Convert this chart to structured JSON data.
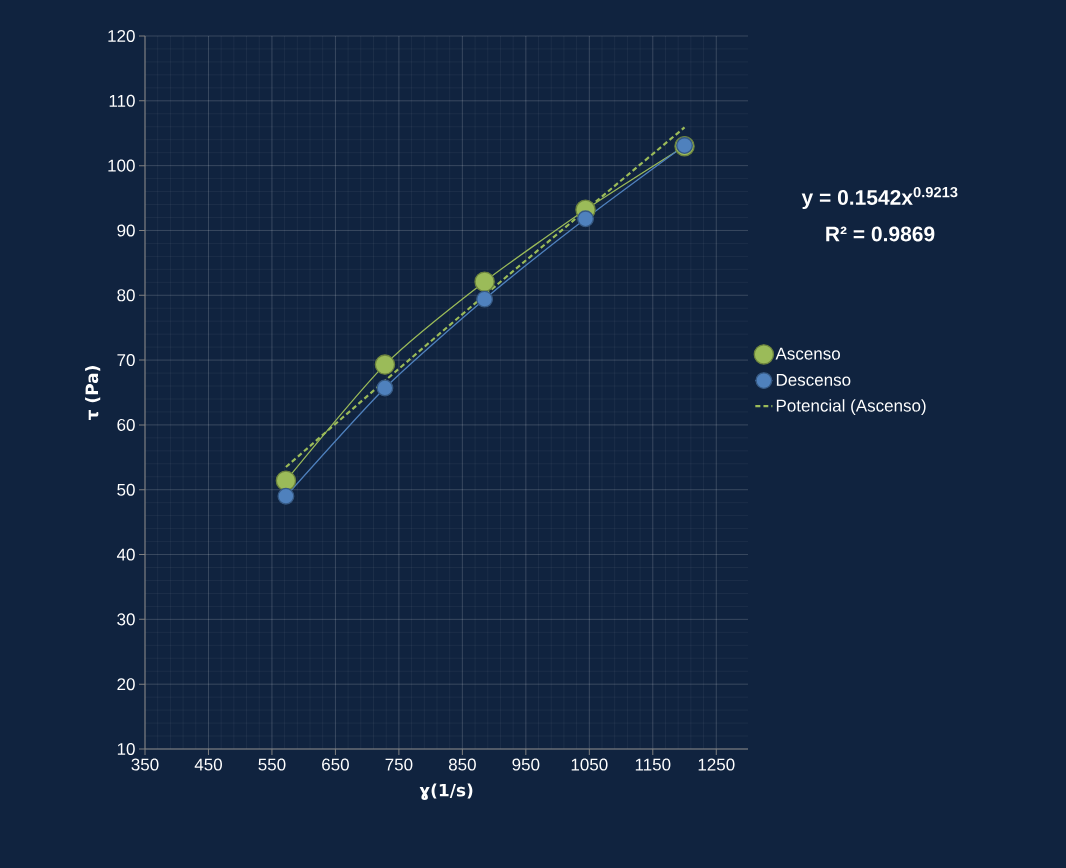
{
  "chart_data": {
    "type": "line",
    "xlabel": "ɣ(1/s)",
    "ylabel": "τ (Pa)",
    "annotations": [
      "y = 0.1542x$^{0.9213}$",
      "R² = 0.9869"
    ],
    "series": [
      {
        "name": "Ascenso",
        "color": "#9bbb59",
        "marker": "circle",
        "line_style": "solid",
        "x": [
          572,
          728,
          885,
          1044,
          1200
        ],
        "values": [
          51.4,
          69.3,
          82.1,
          93.2,
          103
        ]
      },
      {
        "name": "Descenso",
        "color": "#4f81bd",
        "marker": "circle",
        "line_style": "solid",
        "x": [
          572,
          728,
          885,
          1044,
          1200
        ],
        "values": [
          49.0,
          65.7,
          79.4,
          91.8,
          103.1
        ]
      },
      {
        "name": "Potencial (Ascenso)",
        "color": "#9bbb59",
        "marker": "none",
        "line_style": "dashed",
        "x": [
          572,
          728,
          885,
          1044,
          1200
        ],
        "values": [
          53.5,
          66.8,
          80.0,
          93.1,
          105.9
        ]
      }
    ],
    "xlim": [
      350,
      1300
    ],
    "ylim": [
      10,
      120
    ],
    "xticks": [
      350,
      450,
      550,
      650,
      750,
      850,
      950,
      1050,
      1150,
      1250
    ],
    "yticks": [
      10,
      20,
      30,
      40,
      50,
      60,
      70,
      80,
      90,
      100,
      110,
      120
    ],
    "grid": true,
    "legend": "right"
  }
}
